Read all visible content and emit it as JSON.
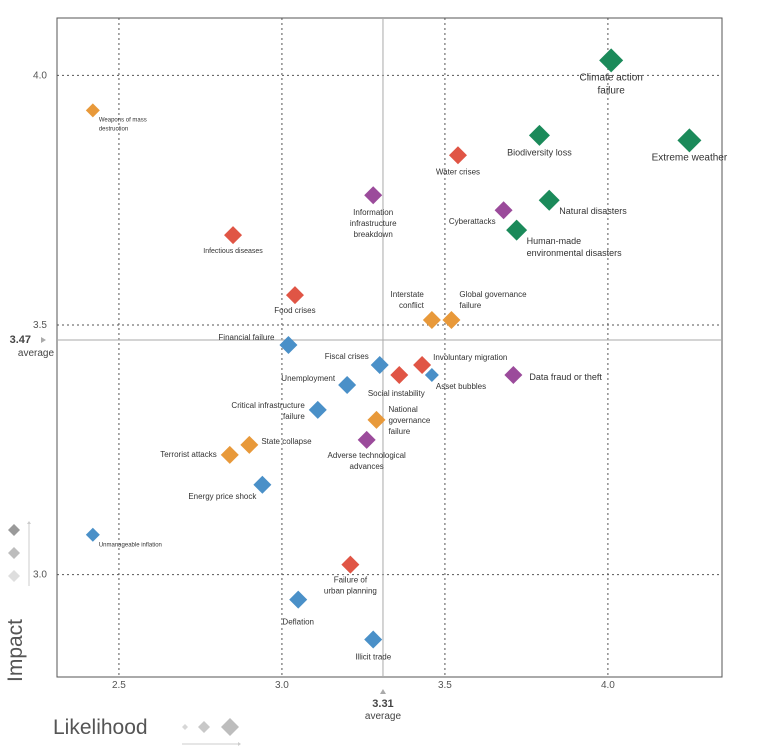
{
  "chart_data": {
    "type": "scatter",
    "xlabel": "Likelihood",
    "ylabel": "Impact",
    "xlim": [
      2.31,
      4.35
    ],
    "ylim": [
      2.795,
      4.115
    ],
    "x_ticks": [
      "2.5",
      "3.0",
      "3.5",
      "4.0"
    ],
    "y_ticks": [
      "3.0",
      "3.5",
      "4.0"
    ],
    "x_tick_values": [
      2.5,
      3.0,
      3.5,
      4.0
    ],
    "y_tick_values": [
      3.0,
      3.5,
      4.0
    ],
    "grid": true,
    "average_x": {
      "value": 3.31,
      "label": "3.31",
      "sublabel": "average"
    },
    "average_y": {
      "value": 3.47,
      "label": "3.47",
      "sublabel": "average"
    },
    "colors": {
      "environmental": "#1b8a5a",
      "geopolitical": "#e8993a",
      "societal": "#e05545",
      "technological": "#9b4b9b",
      "economic": "#4a90c8"
    },
    "points": [
      {
        "label": [
          "Climate action",
          "failure"
        ],
        "x": 4.01,
        "y": 4.03,
        "cat": "environmental",
        "size": "xl",
        "lx": 0,
        "ly": 20,
        "anchor": "middle",
        "fs": 10
      },
      {
        "label": [
          "Extreme weather"
        ],
        "x": 4.25,
        "y": 3.87,
        "cat": "environmental",
        "size": "xl",
        "lx": 0,
        "ly": 20,
        "anchor": "middle",
        "fs": 10
      },
      {
        "label": [
          "Biodiversity loss"
        ],
        "x": 3.79,
        "y": 3.88,
        "cat": "environmental",
        "size": "l",
        "lx": 0,
        "ly": 20,
        "anchor": "middle",
        "fs": 9
      },
      {
        "label": [
          "Natural disasters"
        ],
        "x": 3.82,
        "y": 3.75,
        "cat": "environmental",
        "size": "l",
        "lx": 10,
        "ly": 14,
        "anchor": "start",
        "fs": 9
      },
      {
        "label": [
          "Human-made",
          "environmental disasters"
        ],
        "x": 3.72,
        "y": 3.69,
        "cat": "environmental",
        "size": "l",
        "lx": 10,
        "ly": 14,
        "anchor": "start",
        "fs": 9
      },
      {
        "label": [
          "Water crises"
        ],
        "x": 3.54,
        "y": 3.84,
        "cat": "societal",
        "size": "m",
        "lx": 0,
        "ly": 19,
        "anchor": "middle",
        "fs": 8
      },
      {
        "label": [
          "Cyberattacks"
        ],
        "x": 3.68,
        "y": 3.73,
        "cat": "technological",
        "size": "m",
        "lx": -8,
        "ly": 14,
        "anchor": "end",
        "fs": 8
      },
      {
        "label": [
          "Information",
          "infrastructure",
          "breakdown"
        ],
        "x": 3.28,
        "y": 3.76,
        "cat": "technological",
        "size": "m",
        "lx": 0,
        "ly": 20,
        "anchor": "middle",
        "fs": 8
      },
      {
        "label": [
          "Weapons of mass",
          "destruction"
        ],
        "x": 2.42,
        "y": 3.93,
        "cat": "geopolitical",
        "size": "s",
        "lx": 6,
        "ly": 11,
        "anchor": "start",
        "fs": 6
      },
      {
        "label": [
          "Infectious diseases"
        ],
        "x": 2.85,
        "y": 3.68,
        "cat": "societal",
        "size": "m",
        "lx": 0,
        "ly": 18,
        "anchor": "middle",
        "fs": 7
      },
      {
        "label": [
          "Food crises"
        ],
        "x": 3.04,
        "y": 3.56,
        "cat": "societal",
        "size": "m",
        "lx": 0,
        "ly": 18,
        "anchor": "middle",
        "fs": 8
      },
      {
        "label": [
          "Interstate",
          "conflict"
        ],
        "x": 3.46,
        "y": 3.51,
        "cat": "geopolitical",
        "size": "m",
        "lx": -8,
        "ly": -23,
        "anchor": "end",
        "fs": 8
      },
      {
        "label": [
          "Global governance",
          "failure"
        ],
        "x": 3.52,
        "y": 3.51,
        "cat": "geopolitical",
        "size": "m",
        "lx": 8,
        "ly": -23,
        "anchor": "start",
        "fs": 8
      },
      {
        "label": [
          "Financial failure"
        ],
        "x": 3.02,
        "y": 3.46,
        "cat": "economic",
        "size": "m",
        "lx": -14,
        "ly": -5,
        "anchor": "end",
        "fs": 8
      },
      {
        "label": [
          "Fiscal crises"
        ],
        "x": 3.3,
        "y": 3.42,
        "cat": "economic",
        "size": "m",
        "lx": -11,
        "ly": -6,
        "anchor": "end",
        "fs": 8
      },
      {
        "label": [
          "Involuntary migration"
        ],
        "x": 3.43,
        "y": 3.42,
        "cat": "societal",
        "size": "m",
        "lx": 11,
        "ly": -5,
        "anchor": "start",
        "fs": 8
      },
      {
        "label": [
          "Social instability"
        ],
        "x": 3.36,
        "y": 3.4,
        "cat": "societal",
        "size": "m",
        "lx": -3,
        "ly": 21,
        "anchor": "middle",
        "fs": 8
      },
      {
        "label": [
          "Asset bubbles"
        ],
        "x": 3.46,
        "y": 3.4,
        "cat": "economic",
        "size": "s",
        "lx": 4,
        "ly": 14,
        "anchor": "start",
        "fs": 8
      },
      {
        "label": [
          "Data fraud or theft"
        ],
        "x": 3.71,
        "y": 3.4,
        "cat": "technological",
        "size": "m",
        "lx": 16,
        "ly": 5,
        "anchor": "start",
        "fs": 9
      },
      {
        "label": [
          "Unemployment"
        ],
        "x": 3.2,
        "y": 3.38,
        "cat": "economic",
        "size": "m",
        "lx": -12,
        "ly": -4,
        "anchor": "end",
        "fs": 8
      },
      {
        "label": [
          "Critical infrastructure",
          "failure"
        ],
        "x": 3.11,
        "y": 3.33,
        "cat": "economic",
        "size": "m",
        "lx": -13,
        "ly": -2,
        "anchor": "end",
        "fs": 8
      },
      {
        "label": [
          "National",
          "governance",
          "failure"
        ],
        "x": 3.29,
        "y": 3.31,
        "cat": "geopolitical",
        "size": "m",
        "lx": 12,
        "ly": -8,
        "anchor": "start",
        "fs": 8
      },
      {
        "label": [
          "Adverse technological",
          "advances"
        ],
        "x": 3.26,
        "y": 3.27,
        "cat": "technological",
        "size": "m",
        "lx": 0,
        "ly": 18,
        "anchor": "middle",
        "fs": 8
      },
      {
        "label": [
          "State collapse"
        ],
        "x": 2.9,
        "y": 3.26,
        "cat": "geopolitical",
        "size": "m",
        "lx": 12,
        "ly": -1,
        "anchor": "start",
        "fs": 8
      },
      {
        "label": [
          "Terrorist attacks"
        ],
        "x": 2.84,
        "y": 3.24,
        "cat": "geopolitical",
        "size": "m",
        "lx": -13,
        "ly": 2,
        "anchor": "end",
        "fs": 8
      },
      {
        "label": [
          "Energy price shock"
        ],
        "x": 2.94,
        "y": 3.18,
        "cat": "economic",
        "size": "m",
        "lx": -6,
        "ly": 14,
        "anchor": "end",
        "fs": 8
      },
      {
        "label": [
          "Unmanageable inflation"
        ],
        "x": 2.42,
        "y": 3.08,
        "cat": "economic",
        "size": "s",
        "lx": 6,
        "ly": 12,
        "anchor": "start",
        "fs": 6
      },
      {
        "label": [
          "Failure of",
          "urban planning"
        ],
        "x": 3.21,
        "y": 3.02,
        "cat": "societal",
        "size": "m",
        "lx": 0,
        "ly": 18,
        "anchor": "middle",
        "fs": 8
      },
      {
        "label": [
          "Deflation"
        ],
        "x": 3.05,
        "y": 2.95,
        "cat": "economic",
        "size": "m",
        "lx": 0,
        "ly": 25,
        "anchor": "middle",
        "fs": 8
      },
      {
        "label": [
          "Illicit trade"
        ],
        "x": 3.28,
        "y": 2.87,
        "cat": "economic",
        "size": "m",
        "lx": 0,
        "ly": 20,
        "anchor": "middle",
        "fs": 8
      }
    ]
  }
}
